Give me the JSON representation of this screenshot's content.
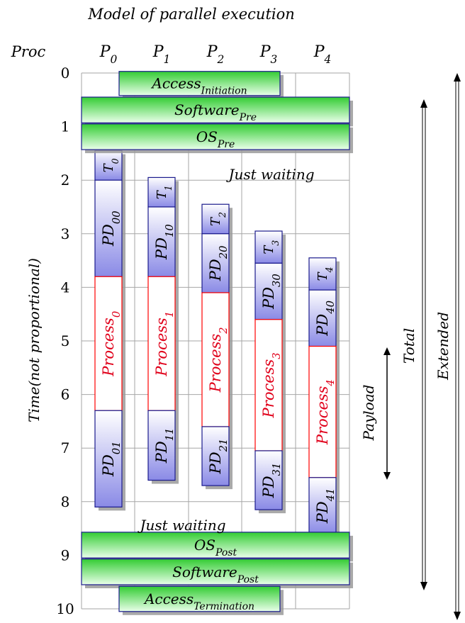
{
  "title": "Model of parallel execution",
  "proc_label": "Proc",
  "processors": [
    {
      "base": "P",
      "sub": "0"
    },
    {
      "base": "P",
      "sub": "1"
    },
    {
      "base": "P",
      "sub": "2"
    },
    {
      "base": "P",
      "sub": "3"
    },
    {
      "base": "P",
      "sub": "4"
    }
  ],
  "time_ticks": [
    "0",
    "1",
    "2",
    "3",
    "4",
    "5",
    "6",
    "7",
    "8",
    "9",
    "10"
  ],
  "y_axis_label": "Time(not proportional)",
  "wide_bars": [
    {
      "base": "Access",
      "sub": "Initiation",
      "kind": "access-initiation"
    },
    {
      "base": "Software",
      "sub": "Pre",
      "kind": "software-pre"
    },
    {
      "base": "OS",
      "sub": "Pre",
      "kind": "os-pre"
    },
    {
      "base": "OS",
      "sub": "Post",
      "kind": "os-post"
    },
    {
      "base": "Software",
      "sub": "Post",
      "kind": "software-post"
    },
    {
      "base": "Access",
      "sub": "Termination",
      "kind": "access-termination"
    }
  ],
  "columns": [
    {
      "t": {
        "base": "T",
        "sub": "0"
      },
      "pd_top": {
        "base": "PD",
        "sub": "00"
      },
      "process": {
        "base": "Process",
        "sub": "0"
      },
      "pd_bottom": {
        "base": "PD",
        "sub": "01"
      }
    },
    {
      "t": {
        "base": "T",
        "sub": "1"
      },
      "pd_top": {
        "base": "PD",
        "sub": "10"
      },
      "process": {
        "base": "Process",
        "sub": "1"
      },
      "pd_bottom": {
        "base": "PD",
        "sub": "11"
      }
    },
    {
      "t": {
        "base": "T",
        "sub": "2"
      },
      "pd_top": {
        "base": "PD",
        "sub": "20"
      },
      "process": {
        "base": "Process",
        "sub": "2"
      },
      "pd_bottom": {
        "base": "PD",
        "sub": "21"
      }
    },
    {
      "t": {
        "base": "T",
        "sub": "3"
      },
      "pd_top": {
        "base": "PD",
        "sub": "30"
      },
      "process": {
        "base": "Process",
        "sub": "3"
      },
      "pd_bottom": {
        "base": "PD",
        "sub": "31"
      }
    },
    {
      "t": {
        "base": "T",
        "sub": "4"
      },
      "pd_top": {
        "base": "PD",
        "sub": "40"
      },
      "process": {
        "base": "Process",
        "sub": "4"
      },
      "pd_bottom": {
        "base": "PD",
        "sub": "41"
      }
    }
  ],
  "annotations": {
    "waiting_top": "Just waiting",
    "waiting_bottom": "Just waiting",
    "payload": "Payload",
    "total": "Total",
    "extended": "Extended"
  },
  "colors": {
    "wide_bar_fill_top": "#33cc33",
    "wide_bar_fill_bottom": "#eaffea",
    "box_fill_top": "#8a8ae6",
    "box_fill_bottom": "#ffffff",
    "box_stroke": "#1a1a8c",
    "process_fill": "#ffffff",
    "process_stroke": "#ff0000",
    "process_text": "#e0001a",
    "shadow": "#9a9a9a",
    "grid": "#a6a6a6"
  }
}
